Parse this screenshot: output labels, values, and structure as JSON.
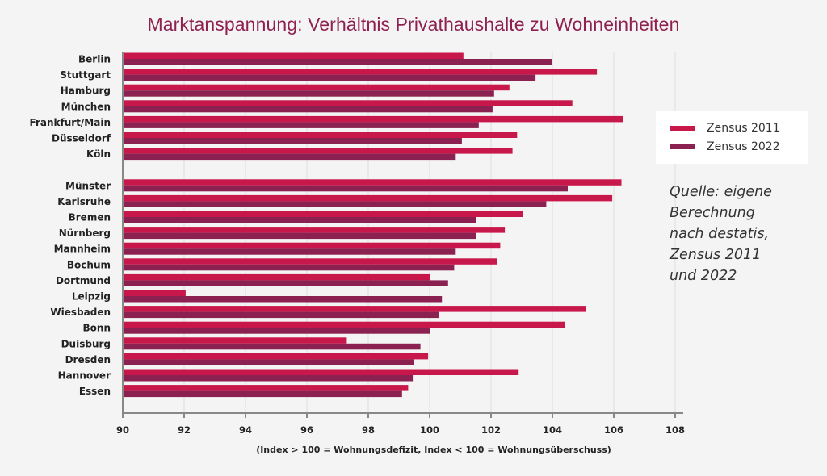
{
  "chart_data": {
    "type": "bar",
    "orientation": "horizontal",
    "title": "Marktanspannung: Verhältnis Privathaushalte zu Wohneinheiten",
    "xlabel": "(Index > 100 = Wohnungsdefizit, Index < 100 = Wohnungsüberschuss)",
    "ylabel": "",
    "xlim": [
      90,
      108
    ],
    "xticks": [
      "90",
      "92",
      "94",
      "96",
      "98",
      "100",
      "102",
      "104",
      "106",
      "108"
    ],
    "grid": true,
    "legend_position": "right",
    "groups": [
      {
        "categories": [
          "Berlin",
          "Stuttgart",
          "Hamburg",
          "München",
          "Frankfurt/Main",
          "Düsseldorf",
          "Köln"
        ]
      },
      {
        "categories": [
          "Münster",
          "Karlsruhe",
          "Bremen",
          "Nürnberg",
          "Mannheim",
          "Bochum",
          "Dortmund",
          "Leipzig",
          "Wiesbaden",
          "Bonn",
          "Duisburg",
          "Dresden",
          "Hannover",
          "Essen"
        ]
      }
    ],
    "categories": [
      "Berlin",
      "Stuttgart",
      "Hamburg",
      "München",
      "Frankfurt/Main",
      "Düsseldorf",
      "Köln",
      "Münster",
      "Karlsruhe",
      "Bremen",
      "Nürnberg",
      "Mannheim",
      "Bochum",
      "Dortmund",
      "Leipzig",
      "Wiesbaden",
      "Bonn",
      "Duisburg",
      "Dresden",
      "Hannover",
      "Essen"
    ],
    "series": [
      {
        "name": "Zensus 2011",
        "color": "#c8174a",
        "values": [
          101.1,
          105.45,
          102.6,
          104.65,
          106.3,
          102.85,
          102.7,
          106.25,
          105.95,
          103.05,
          102.45,
          102.3,
          102.2,
          100.0,
          92.05,
          105.1,
          104.4,
          97.3,
          99.95,
          102.9,
          99.3
        ]
      },
      {
        "name": "Zensus 2022",
        "color": "#8b2150",
        "values": [
          104.0,
          103.45,
          102.1,
          102.05,
          101.6,
          101.05,
          100.85,
          104.5,
          103.8,
          101.5,
          101.5,
          100.85,
          100.8,
          100.6,
          100.4,
          100.3,
          100.0,
          99.7,
          99.5,
          99.45,
          99.1
        ]
      }
    ]
  },
  "legend": {
    "items": [
      {
        "label": "Zensus 2011",
        "color": "#c8174a"
      },
      {
        "label": "Zensus 2022",
        "color": "#8b2150"
      }
    ]
  },
  "source": {
    "lines": [
      "Quelle: eigene",
      "Berechnung",
      "nach destatis,",
      "Zensus 2011",
      "und 2022"
    ]
  }
}
